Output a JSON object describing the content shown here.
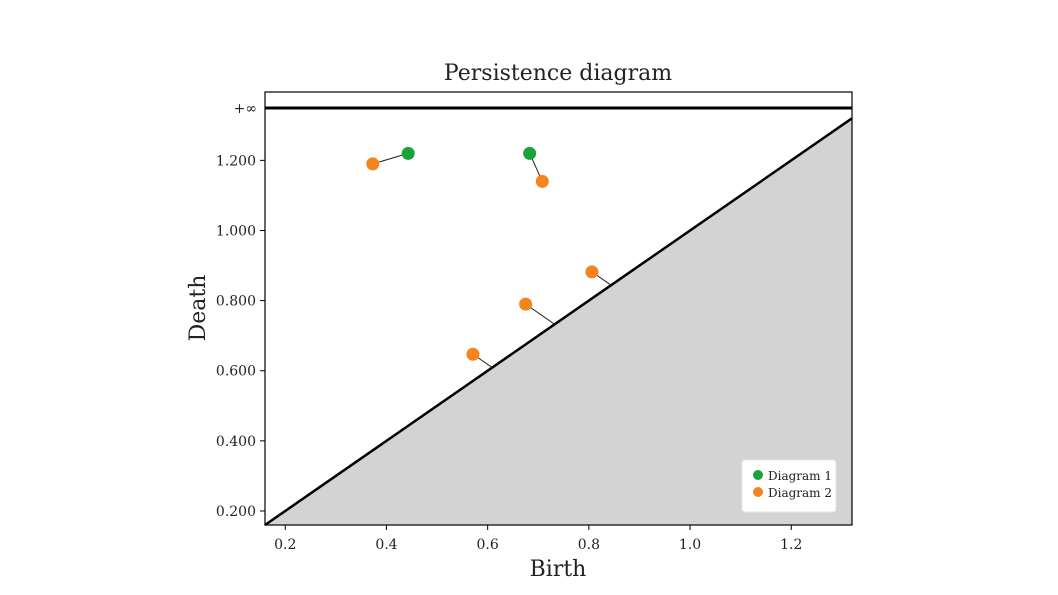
{
  "chart_data": {
    "type": "scatter",
    "title": "Persistence diagram",
    "xlabel": "Birth",
    "ylabel": "Death",
    "xlim": [
      0.16,
      1.32
    ],
    "ylim": [
      0.16,
      1.395
    ],
    "infinity_label": "+∞",
    "infinity_y": 1.395,
    "x_ticks": [
      {
        "value": 0.2,
        "label": "0.2"
      },
      {
        "value": 0.4,
        "label": "0.4"
      },
      {
        "value": 0.6,
        "label": "0.6"
      },
      {
        "value": 0.8,
        "label": "0.8"
      },
      {
        "value": 1.0,
        "label": "1.0"
      },
      {
        "value": 1.2,
        "label": "1.2"
      }
    ],
    "y_ticks": [
      {
        "value": 0.2,
        "label": "0.200"
      },
      {
        "value": 0.4,
        "label": "0.400"
      },
      {
        "value": 0.6,
        "label": "0.600"
      },
      {
        "value": 0.8,
        "label": "0.800"
      },
      {
        "value": 1.0,
        "label": "1.000"
      },
      {
        "value": 1.2,
        "label": "1.200"
      }
    ],
    "series": [
      {
        "name": "Diagram 1",
        "color": "#1aa33a",
        "points": [
          {
            "x": 0.443,
            "y": 1.22
          },
          {
            "x": 0.683,
            "y": 1.22
          }
        ]
      },
      {
        "name": "Diagram 2",
        "color": "#f5841f",
        "points": [
          {
            "x": 0.373,
            "y": 1.19
          },
          {
            "x": 0.708,
            "y": 1.14
          },
          {
            "x": 0.806,
            "y": 0.882
          },
          {
            "x": 0.675,
            "y": 0.79
          },
          {
            "x": 0.571,
            "y": 0.647
          }
        ]
      }
    ],
    "matching": [
      {
        "from": {
          "x": 0.443,
          "y": 1.22
        },
        "to": {
          "x": 0.373,
          "y": 1.19
        }
      },
      {
        "from": {
          "x": 0.683,
          "y": 1.22
        },
        "to": {
          "x": 0.708,
          "y": 1.14
        }
      },
      {
        "from": {
          "x": 0.806,
          "y": 0.882
        },
        "to": {
          "x": 0.844,
          "y": 0.844
        }
      },
      {
        "from": {
          "x": 0.675,
          "y": 0.79
        },
        "to": {
          "x": 0.7325,
          "y": 0.7325
        }
      },
      {
        "from": {
          "x": 0.571,
          "y": 0.647
        },
        "to": {
          "x": 0.609,
          "y": 0.609
        }
      }
    ],
    "diagonal": true,
    "grid": false,
    "legend_position": "bottom-right"
  }
}
